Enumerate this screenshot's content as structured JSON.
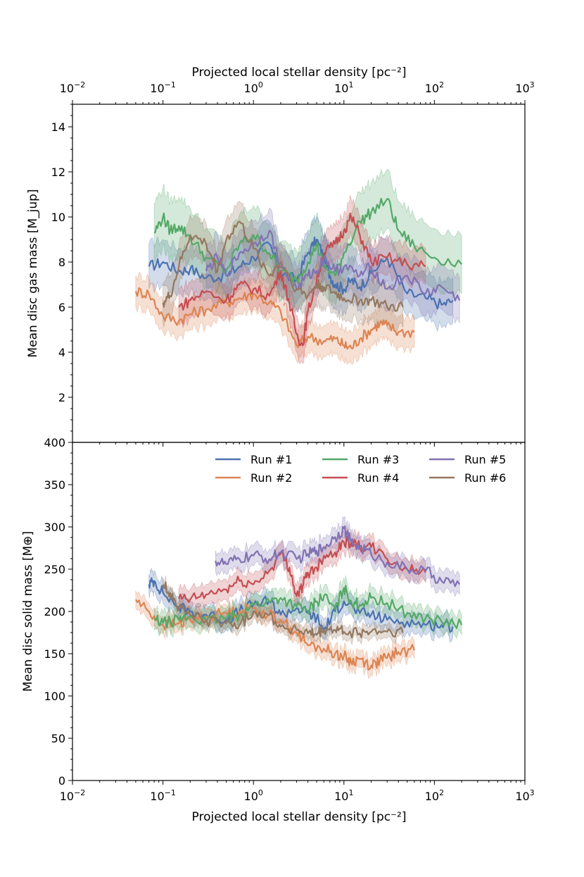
{
  "chart_data": [
    {
      "panel": "top",
      "type": "line",
      "xscale": "log",
      "xlim": [
        0.01,
        1000
      ],
      "ylim": [
        0,
        15
      ],
      "xlabel": "",
      "top_xlabel": "Projected local stellar density [pc⁻²]",
      "ylabel": "Mean disc gas mass [M_jup]",
      "yticks": [
        2,
        4,
        6,
        8,
        10,
        12,
        14
      ],
      "ytick_labels": [
        "2",
        "4",
        "6",
        "8",
        "10",
        "12",
        "14"
      ],
      "series": [
        {
          "name": "Run #1",
          "color": "#4c72b0",
          "x": [
            0.07,
            0.1,
            0.15,
            0.2,
            0.3,
            0.5,
            0.7,
            1.0,
            1.5,
            2,
            3,
            4,
            5,
            6,
            7,
            8,
            10,
            12,
            15,
            20,
            30,
            50,
            80,
            120,
            160
          ],
          "y": [
            7.8,
            8.0,
            7.6,
            7.7,
            7.3,
            7.4,
            7.8,
            8.2,
            8.8,
            7.5,
            7.2,
            8.4,
            9.0,
            8.2,
            7.4,
            7.0,
            6.8,
            7.2,
            6.9,
            7.5,
            8.2,
            6.6,
            6.4,
            6.1,
            6.3
          ],
          "band": 1.0
        },
        {
          "name": "Run #2",
          "color": "#dd8452",
          "x": [
            0.05,
            0.07,
            0.1,
            0.15,
            0.2,
            0.3,
            0.5,
            0.7,
            1.0,
            1.5,
            2,
            3,
            4,
            6,
            8,
            10,
            12,
            15,
            20,
            25,
            30,
            40,
            60
          ],
          "y": [
            6.7,
            6.6,
            5.6,
            5.4,
            5.7,
            5.9,
            6.2,
            6.4,
            6.6,
            6.2,
            5.8,
            4.3,
            4.7,
            4.5,
            4.6,
            4.3,
            4.2,
            4.6,
            5.0,
            5.3,
            5.2,
            4.9,
            4.9
          ],
          "band": 0.7
        },
        {
          "name": "Run #3",
          "color": "#55a868",
          "x": [
            0.08,
            0.1,
            0.12,
            0.15,
            0.2,
            0.3,
            0.5,
            0.7,
            1.0,
            1.5,
            2,
            3,
            4,
            5,
            6,
            8,
            10,
            15,
            20,
            30,
            40,
            60,
            100,
            200
          ],
          "y": [
            9.3,
            10.0,
            9.4,
            9.6,
            9.1,
            8.2,
            7.6,
            8.8,
            9.2,
            8.4,
            7.6,
            7.2,
            8.0,
            8.8,
            7.8,
            7.4,
            8.4,
            9.8,
            10.2,
            10.8,
            9.4,
            8.7,
            8.2,
            7.9
          ],
          "band": 1.3
        },
        {
          "name": "Run #4",
          "color": "#c44e52",
          "x": [
            0.15,
            0.2,
            0.3,
            0.5,
            0.7,
            1.0,
            1.5,
            2,
            2.5,
            3,
            3.5,
            4,
            5,
            6,
            8,
            10,
            12,
            15,
            20,
            30,
            50,
            80
          ],
          "y": [
            6.0,
            6.3,
            6.7,
            6.3,
            7.0,
            6.8,
            6.5,
            7.6,
            6.2,
            4.8,
            4.3,
            5.8,
            7.2,
            8.4,
            8.8,
            9.4,
            10.0,
            9.2,
            8.0,
            8.2,
            7.9,
            7.8
          ],
          "band": 0.8
        },
        {
          "name": "Run #5",
          "color": "#8172b3",
          "x": [
            0.3,
            0.4,
            0.5,
            0.7,
            1.0,
            1.5,
            2,
            3,
            4,
            5,
            6,
            8,
            10,
            15,
            20,
            30,
            50,
            80,
            120,
            190
          ],
          "y": [
            7.6,
            8.2,
            7.4,
            8.4,
            8.8,
            9.4,
            7.8,
            6.8,
            7.4,
            7.6,
            8.2,
            7.6,
            7.8,
            7.4,
            7.8,
            6.8,
            7.4,
            6.6,
            6.9,
            6.3
          ],
          "band": 1.0
        },
        {
          "name": "Run #6",
          "color": "#937860",
          "x": [
            0.1,
            0.12,
            0.15,
            0.2,
            0.3,
            0.4,
            0.5,
            0.7,
            1.0,
            1.5,
            2,
            3,
            4,
            5,
            6,
            8,
            10,
            15,
            20,
            30,
            45
          ],
          "y": [
            6.2,
            6.5,
            7.8,
            9.2,
            8.8,
            7.6,
            9.0,
            9.8,
            8.6,
            7.4,
            8.0,
            6.8,
            6.5,
            7.0,
            6.9,
            6.6,
            6.4,
            6.3,
            6.3,
            6.0,
            6.0
          ],
          "band": 0.9
        }
      ]
    },
    {
      "panel": "bottom",
      "type": "line",
      "xscale": "log",
      "xlim": [
        0.01,
        1000
      ],
      "ylim": [
        0,
        400
      ],
      "xlabel": "Projected local stellar density [pc⁻²]",
      "ylabel": "Mean disc solid mass [M⊕]",
      "yticks": [
        0,
        50,
        100,
        150,
        200,
        250,
        300,
        350,
        400
      ],
      "ytick_labels": [
        "0",
        "50",
        "100",
        "150",
        "200",
        "250",
        "300",
        "350",
        "400"
      ],
      "legend_loc": "upper-right",
      "series": [
        {
          "name": "Run #1",
          "color": "#4c72b0",
          "x": [
            0.07,
            0.08,
            0.1,
            0.15,
            0.2,
            0.3,
            0.5,
            0.7,
            1.0,
            1.5,
            2,
            3,
            4,
            5,
            6,
            8,
            10,
            15,
            20,
            30,
            50,
            80,
            120,
            160
          ],
          "y": [
            232,
            236,
            222,
            205,
            200,
            196,
            190,
            200,
            208,
            212,
            196,
            204,
            198,
            192,
            178,
            200,
            212,
            198,
            196,
            190,
            188,
            184,
            184,
            182
          ],
          "band": 12
        },
        {
          "name": "Run #2",
          "color": "#dd8452",
          "x": [
            0.05,
            0.07,
            0.1,
            0.15,
            0.2,
            0.3,
            0.5,
            0.7,
            1.0,
            1.5,
            2,
            3,
            4,
            6,
            8,
            10,
            12,
            15,
            20,
            25,
            30,
            40,
            60
          ],
          "y": [
            214,
            200,
            184,
            186,
            190,
            194,
            198,
            200,
            204,
            196,
            190,
            175,
            160,
            156,
            150,
            147,
            140,
            144,
            136,
            142,
            145,
            152,
            154
          ],
          "band": 10
        },
        {
          "name": "Run #3",
          "color": "#55a868",
          "x": [
            0.08,
            0.1,
            0.15,
            0.2,
            0.3,
            0.5,
            0.7,
            1.0,
            1.5,
            2,
            3,
            4,
            5,
            6,
            8,
            10,
            12,
            15,
            20,
            30,
            50,
            80,
            120,
            200
          ],
          "y": [
            190,
            186,
            190,
            194,
            188,
            192,
            196,
            208,
            212,
            216,
            206,
            200,
            212,
            218,
            202,
            228,
            212,
            208,
            216,
            210,
            198,
            192,
            188,
            184
          ],
          "band": 12
        },
        {
          "name": "Run #4",
          "color": "#c44e52",
          "x": [
            0.15,
            0.2,
            0.3,
            0.5,
            0.7,
            1.0,
            1.5,
            2,
            2.5,
            3,
            3.5,
            4,
            5,
            6,
            8,
            10,
            12,
            15,
            20,
            30,
            50,
            80
          ],
          "y": [
            215,
            214,
            220,
            226,
            236,
            232,
            248,
            268,
            252,
            218,
            230,
            246,
            252,
            266,
            270,
            282,
            282,
            276,
            276,
            262,
            250,
            246
          ],
          "band": 12
        },
        {
          "name": "Run #5",
          "color": "#8172b3",
          "x": [
            0.38,
            0.5,
            0.7,
            1.0,
            1.5,
            2,
            3,
            4,
            5,
            6,
            8,
            10,
            12,
            15,
            20,
            30,
            50,
            80,
            120,
            190
          ],
          "y": [
            260,
            256,
            262,
            266,
            262,
            270,
            262,
            268,
            272,
            276,
            288,
            298,
            282,
            276,
            268,
            258,
            250,
            248,
            236,
            232
          ],
          "band": 12
        },
        {
          "name": "Run #6",
          "color": "#937860",
          "x": [
            0.1,
            0.12,
            0.15,
            0.2,
            0.3,
            0.5,
            0.7,
            1.0,
            1.5,
            2,
            3,
            4,
            5,
            6,
            8,
            10,
            15,
            20,
            30,
            45
          ],
          "y": [
            232,
            222,
            204,
            196,
            190,
            186,
            184,
            200,
            196,
            182,
            178,
            174,
            172,
            178,
            178,
            176,
            174,
            176,
            176,
            175
          ],
          "band": 8
        }
      ]
    }
  ],
  "x_axis": {
    "tick_values": [
      0.01,
      0.1,
      1,
      10,
      100,
      1000
    ],
    "tick_bases": [
      "10",
      "10",
      "10",
      "10",
      "10",
      "10"
    ],
    "tick_exponents": [
      "−2",
      "−1",
      "0",
      "1",
      "2",
      "3"
    ]
  },
  "legend": {
    "entries": [
      {
        "label": "Run #1",
        "color": "#4c72b0"
      },
      {
        "label": "Run #3",
        "color": "#55a868"
      },
      {
        "label": "Run #5",
        "color": "#8172b3"
      },
      {
        "label": "Run #2",
        "color": "#dd8452"
      },
      {
        "label": "Run #4",
        "color": "#c44e52"
      },
      {
        "label": "Run #6",
        "color": "#937860"
      }
    ]
  }
}
